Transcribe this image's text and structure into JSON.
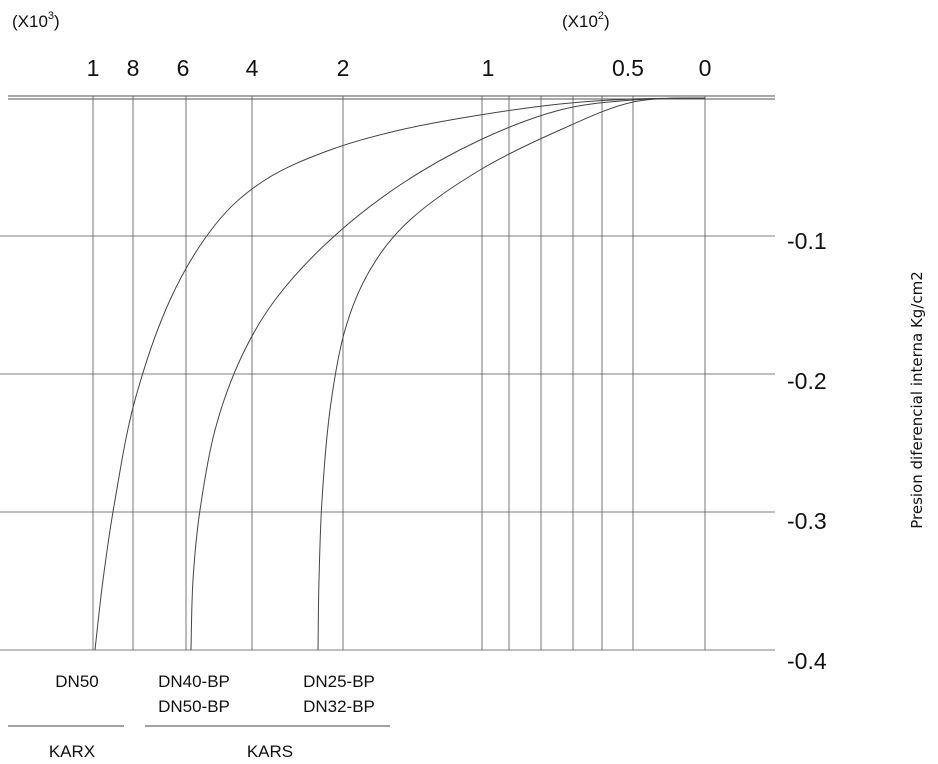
{
  "chart_data": {
    "type": "line",
    "title": "",
    "xlabel": "",
    "ylabel": "Presion diferencial interna Kg/cm2",
    "top_axis": {
      "multipliers": [
        {
          "base": "(X10",
          "exp": "3",
          "close": ")"
        },
        {
          "base": "(X10",
          "exp": "2",
          "close": ")"
        }
      ],
      "tick_labels": [
        "1",
        "8",
        "6",
        "4",
        "2",
        "1",
        "0.5",
        "0"
      ]
    },
    "y_ticks": [
      "-0.1",
      "-0.2",
      "-0.3",
      "-0.4"
    ],
    "ylim": [
      -0.4,
      0
    ],
    "grid": true,
    "series": [
      {
        "label": "DN50",
        "points": [
          [
            0,
            0
          ],
          [
            0.5,
            -0.003
          ],
          [
            1,
            -0.008
          ],
          [
            2,
            -0.02
          ],
          [
            4,
            -0.06
          ],
          [
            6,
            -0.12
          ],
          [
            8,
            -0.2
          ],
          [
            10,
            -0.4
          ]
        ]
      },
      {
        "label": "DN40-BP DN50-BP",
        "points": [
          [
            0,
            0
          ],
          [
            0.5,
            -0.005
          ],
          [
            1,
            -0.025
          ],
          [
            2,
            -0.1
          ],
          [
            4,
            -0.2
          ],
          [
            6,
            -0.4
          ]
        ]
      },
      {
        "label": "DN25-BP DN32-BP",
        "points": [
          [
            0,
            0
          ],
          [
            0.5,
            -0.006
          ],
          [
            1,
            -0.06
          ],
          [
            2,
            -0.2
          ],
          [
            2.5,
            -0.4
          ]
        ]
      }
    ],
    "model_labels": [
      {
        "line1": "DN50",
        "line2": ""
      },
      {
        "line1": "DN40-BP",
        "line2": "DN50-BP"
      },
      {
        "line1": "DN25-BP",
        "line2": "DN32-BP"
      }
    ],
    "groups": [
      "KARX",
      "KARS"
    ]
  }
}
